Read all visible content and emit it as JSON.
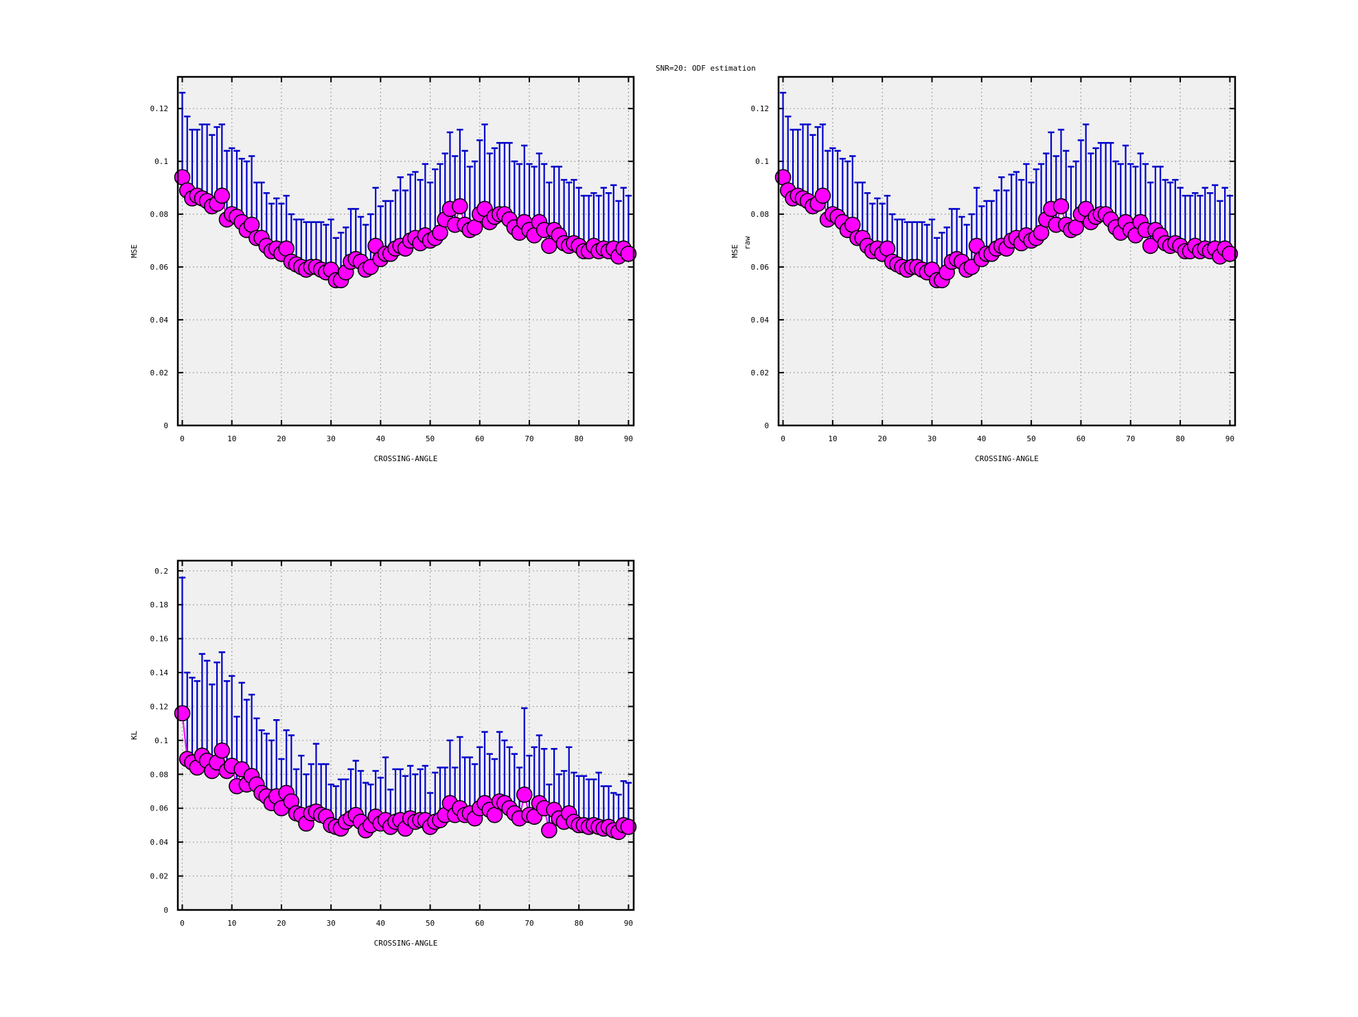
{
  "title": "SNR=20: ODF estimation",
  "colors": {
    "marker_fill": "#ff00ff",
    "marker_edge": "#000000",
    "errorbar": "#0000cc",
    "plot_bg": "#f0f0f0",
    "grid": "#888888"
  },
  "chart_data": [
    {
      "type": "scatter",
      "title": "",
      "xlabel": "CROSSING-ANGLE",
      "ylabel": "MSE",
      "ylabel_sub": "",
      "xlim": [
        -0.9,
        91.05
      ],
      "ylim": [
        0,
        0.132
      ],
      "xticks": [
        0,
        10,
        20,
        30,
        40,
        50,
        60,
        70,
        80,
        90
      ],
      "xtick_labels": [
        "0",
        "10",
        "20",
        "30",
        "40",
        "50",
        "60",
        "70",
        "80",
        "90"
      ],
      "yticks": [
        0,
        0.02,
        0.04,
        0.06,
        0.08,
        0.1,
        0.12
      ],
      "ytick_labels": [
        "0",
        "0.02",
        "0.04",
        "0.06",
        "0.08",
        "0.1",
        "0.12"
      ],
      "grid": true,
      "x_start": 0,
      "mean": [
        0.094,
        0.089,
        0.086,
        0.087,
        0.086,
        0.085,
        0.083,
        0.084,
        0.087,
        0.078,
        0.08,
        0.079,
        0.077,
        0.074,
        0.076,
        0.071,
        0.071,
        0.068,
        0.066,
        0.067,
        0.065,
        0.067,
        0.062,
        0.061,
        0.06,
        0.059,
        0.06,
        0.06,
        0.059,
        0.058,
        0.059,
        0.055,
        0.055,
        0.058,
        0.062,
        0.063,
        0.062,
        0.059,
        0.06,
        0.068,
        0.063,
        0.065,
        0.065,
        0.067,
        0.068,
        0.067,
        0.07,
        0.071,
        0.069,
        0.072,
        0.07,
        0.071,
        0.073,
        0.078,
        0.082,
        0.076,
        0.083,
        0.076,
        0.074,
        0.075,
        0.08,
        0.082,
        0.077,
        0.079,
        0.08,
        0.08,
        0.078,
        0.075,
        0.073,
        0.077,
        0.074,
        0.072,
        0.077,
        0.074,
        0.068,
        0.074,
        0.072,
        0.069,
        0.068,
        0.069,
        0.068,
        0.066,
        0.066,
        0.068,
        0.066,
        0.067,
        0.066,
        0.067,
        0.064,
        0.067,
        0.065
      ],
      "upper": [
        0.126,
        0.117,
        0.112,
        0.112,
        0.114,
        0.114,
        0.11,
        0.113,
        0.114,
        0.104,
        0.105,
        0.104,
        0.101,
        0.1,
        0.102,
        0.092,
        0.092,
        0.088,
        0.084,
        0.086,
        0.084,
        0.087,
        0.08,
        0.078,
        0.078,
        0.077,
        0.077,
        0.077,
        0.077,
        0.076,
        0.078,
        0.071,
        0.073,
        0.075,
        0.082,
        0.082,
        0.079,
        0.076,
        0.08,
        0.09,
        0.083,
        0.085,
        0.085,
        0.089,
        0.094,
        0.089,
        0.095,
        0.096,
        0.093,
        0.099,
        0.092,
        0.097,
        0.099,
        0.103,
        0.111,
        0.102,
        0.112,
        0.104,
        0.098,
        0.1,
        0.108,
        0.114,
        0.103,
        0.105,
        0.107,
        0.107,
        0.107,
        0.1,
        0.099,
        0.106,
        0.099,
        0.098,
        0.103,
        0.099,
        0.092,
        0.098,
        0.098,
        0.093,
        0.092,
        0.093,
        0.09,
        0.087,
        0.087,
        0.088,
        0.087,
        0.09,
        0.088,
        0.091,
        0.085,
        0.09,
        0.087
      ]
    },
    {
      "type": "scatter",
      "title": "",
      "xlabel": "CROSSING-ANGLE",
      "ylabel": "MSE",
      "ylabel_sub": "raw",
      "xlim": [
        -0.9,
        91.05
      ],
      "ylim": [
        0,
        0.132
      ],
      "xticks": [
        0,
        10,
        20,
        30,
        40,
        50,
        60,
        70,
        80,
        90
      ],
      "xtick_labels": [
        "0",
        "10",
        "20",
        "30",
        "40",
        "50",
        "60",
        "70",
        "80",
        "90"
      ],
      "yticks": [
        0,
        0.02,
        0.04,
        0.06,
        0.08,
        0.1,
        0.12
      ],
      "ytick_labels": [
        "0",
        "0.02",
        "0.04",
        "0.06",
        "0.08",
        "0.1",
        "0.12"
      ],
      "grid": true,
      "x_start": 0,
      "mean": [
        0.094,
        0.089,
        0.086,
        0.087,
        0.086,
        0.085,
        0.083,
        0.084,
        0.087,
        0.078,
        0.08,
        0.079,
        0.077,
        0.074,
        0.076,
        0.071,
        0.071,
        0.068,
        0.066,
        0.067,
        0.065,
        0.067,
        0.062,
        0.061,
        0.06,
        0.059,
        0.06,
        0.06,
        0.059,
        0.058,
        0.059,
        0.055,
        0.055,
        0.058,
        0.062,
        0.063,
        0.062,
        0.059,
        0.06,
        0.068,
        0.063,
        0.065,
        0.065,
        0.067,
        0.068,
        0.067,
        0.07,
        0.071,
        0.069,
        0.072,
        0.07,
        0.071,
        0.073,
        0.078,
        0.082,
        0.076,
        0.083,
        0.076,
        0.074,
        0.075,
        0.08,
        0.082,
        0.077,
        0.079,
        0.08,
        0.08,
        0.078,
        0.075,
        0.073,
        0.077,
        0.074,
        0.072,
        0.077,
        0.074,
        0.068,
        0.074,
        0.072,
        0.069,
        0.068,
        0.069,
        0.068,
        0.066,
        0.066,
        0.068,
        0.066,
        0.067,
        0.066,
        0.067,
        0.064,
        0.067,
        0.065
      ],
      "upper": [
        0.126,
        0.117,
        0.112,
        0.112,
        0.114,
        0.114,
        0.11,
        0.113,
        0.114,
        0.104,
        0.105,
        0.104,
        0.101,
        0.1,
        0.102,
        0.092,
        0.092,
        0.088,
        0.084,
        0.086,
        0.084,
        0.087,
        0.08,
        0.078,
        0.078,
        0.077,
        0.077,
        0.077,
        0.077,
        0.076,
        0.078,
        0.071,
        0.073,
        0.075,
        0.082,
        0.082,
        0.079,
        0.076,
        0.08,
        0.09,
        0.083,
        0.085,
        0.085,
        0.089,
        0.094,
        0.089,
        0.095,
        0.096,
        0.093,
        0.099,
        0.092,
        0.097,
        0.099,
        0.103,
        0.111,
        0.102,
        0.112,
        0.104,
        0.098,
        0.1,
        0.108,
        0.114,
        0.103,
        0.105,
        0.107,
        0.107,
        0.107,
        0.1,
        0.099,
        0.106,
        0.099,
        0.098,
        0.103,
        0.099,
        0.092,
        0.098,
        0.098,
        0.093,
        0.092,
        0.093,
        0.09,
        0.087,
        0.087,
        0.088,
        0.087,
        0.09,
        0.088,
        0.091,
        0.085,
        0.09,
        0.087
      ]
    },
    {
      "type": "scatter",
      "title": "",
      "xlabel": "CROSSING-ANGLE",
      "ylabel": "KL",
      "ylabel_sub": "",
      "xlim": [
        -0.9,
        91.05
      ],
      "ylim": [
        0,
        0.206
      ],
      "xticks": [
        0,
        10,
        20,
        30,
        40,
        50,
        60,
        70,
        80,
        90
      ],
      "xtick_labels": [
        "0",
        "10",
        "20",
        "30",
        "40",
        "50",
        "60",
        "70",
        "80",
        "90"
      ],
      "yticks": [
        0,
        0.02,
        0.04,
        0.06,
        0.08,
        0.1,
        0.12,
        0.14,
        0.16,
        0.18,
        0.2
      ],
      "ytick_labels": [
        "0",
        "0.02",
        "0.04",
        "0.06",
        "0.08",
        "0.1",
        "0.12",
        "0.14",
        "0.16",
        "0.18",
        "0.2"
      ],
      "grid": true,
      "x_start": 0,
      "mean": [
        0.116,
        0.089,
        0.087,
        0.084,
        0.091,
        0.088,
        0.082,
        0.087,
        0.094,
        0.082,
        0.085,
        0.073,
        0.083,
        0.074,
        0.079,
        0.074,
        0.069,
        0.067,
        0.063,
        0.067,
        0.06,
        0.069,
        0.064,
        0.057,
        0.056,
        0.051,
        0.057,
        0.058,
        0.056,
        0.055,
        0.05,
        0.049,
        0.048,
        0.052,
        0.054,
        0.056,
        0.052,
        0.047,
        0.05,
        0.055,
        0.051,
        0.053,
        0.049,
        0.052,
        0.053,
        0.048,
        0.054,
        0.052,
        0.053,
        0.053,
        0.049,
        0.052,
        0.053,
        0.056,
        0.063,
        0.056,
        0.06,
        0.056,
        0.057,
        0.054,
        0.06,
        0.063,
        0.059,
        0.056,
        0.064,
        0.063,
        0.06,
        0.057,
        0.054,
        0.068,
        0.056,
        0.055,
        0.063,
        0.06,
        0.047,
        0.059,
        0.054,
        0.052,
        0.057,
        0.052,
        0.05,
        0.05,
        0.049,
        0.05,
        0.049,
        0.048,
        0.049,
        0.047,
        0.046,
        0.05,
        0.049
      ],
      "upper": [
        0.196,
        0.14,
        0.137,
        0.135,
        0.151,
        0.147,
        0.133,
        0.146,
        0.152,
        0.135,
        0.138,
        0.114,
        0.134,
        0.124,
        0.127,
        0.113,
        0.106,
        0.104,
        0.1,
        0.112,
        0.089,
        0.106,
        0.103,
        0.083,
        0.091,
        0.08,
        0.086,
        0.098,
        0.086,
        0.086,
        0.074,
        0.073,
        0.077,
        0.077,
        0.083,
        0.088,
        0.082,
        0.075,
        0.074,
        0.082,
        0.078,
        0.09,
        0.071,
        0.083,
        0.083,
        0.079,
        0.085,
        0.08,
        0.083,
        0.085,
        0.069,
        0.081,
        0.084,
        0.084,
        0.1,
        0.084,
        0.102,
        0.09,
        0.09,
        0.086,
        0.096,
        0.105,
        0.092,
        0.089,
        0.105,
        0.1,
        0.096,
        0.092,
        0.084,
        0.119,
        0.091,
        0.096,
        0.103,
        0.095,
        0.074,
        0.095,
        0.08,
        0.082,
        0.096,
        0.081,
        0.079,
        0.079,
        0.077,
        0.077,
        0.081,
        0.073,
        0.073,
        0.069,
        0.068,
        0.076,
        0.075
      ]
    }
  ]
}
